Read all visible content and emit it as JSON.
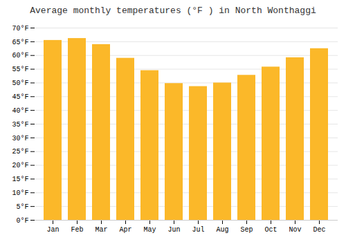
{
  "chart_data": {
    "type": "bar",
    "title": "Average monthly temperatures (°F ) in North Wonthaggi",
    "categories": [
      "Jan",
      "Feb",
      "Mar",
      "Apr",
      "May",
      "Jun",
      "Jul",
      "Aug",
      "Sep",
      "Oct",
      "Nov",
      "Dec"
    ],
    "values": [
      65.5,
      66.2,
      64.0,
      59.0,
      54.5,
      49.8,
      48.7,
      50.0,
      52.8,
      55.8,
      59.2,
      62.5
    ],
    "color": "#FBB829",
    "ylim": [
      0,
      70
    ],
    "yticks": [
      {
        "value": 0,
        "label": "0°F"
      },
      {
        "value": 5,
        "label": "5°F"
      },
      {
        "value": 10,
        "label": "10°F"
      },
      {
        "value": 15,
        "label": "15°F"
      },
      {
        "value": 20,
        "label": "20°F"
      },
      {
        "value": 25,
        "label": "25°F"
      },
      {
        "value": 30,
        "label": "30°F"
      },
      {
        "value": 35,
        "label": "35°F"
      },
      {
        "value": 40,
        "label": "40°F"
      },
      {
        "value": 45,
        "label": "45°F"
      },
      {
        "value": 50,
        "label": "50°F"
      },
      {
        "value": 55,
        "label": "55°F"
      },
      {
        "value": 60,
        "label": "60°F"
      },
      {
        "value": 65,
        "label": "65°F"
      },
      {
        "value": 70,
        "label": "70°F"
      }
    ],
    "grid": true
  }
}
